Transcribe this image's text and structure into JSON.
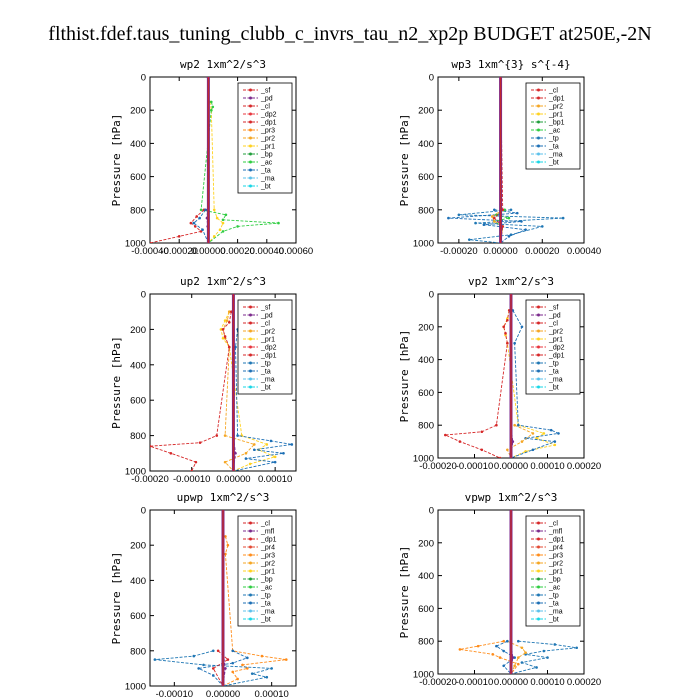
{
  "figure_title": "flthist.fdef.taus_tuning_clubb_c_invrs_tau_n2_xp2p  BUDGET at250E,-2N",
  "colors": {
    "sf": "#d62728",
    "pd": "#7b2a8c",
    "cl": "#d62728",
    "dp1": "#d62728",
    "dp2": "#e8343c",
    "pr1": "#ffd21f",
    "pr2": "#f5a623",
    "pr3": "#ff8c1a",
    "pr4": "#e34a33",
    "bp": "#1f9e3a",
    "bp1": "#1f9e3a",
    "ac": "#2ecc40",
    "tp": "#1f77b4",
    "ta": "#1c6fb5",
    "ma": "#5bc0eb",
    "bt": "#17d6e6",
    "mfl": "#7b2a8c"
  },
  "chart_data": [
    {
      "type": "line",
      "title": "wp2  1xm^2/s^3",
      "ylabel": "Pressure [hPa]",
      "xlim": [
        -0.0004,
        0.0006
      ],
      "ylim": [
        1000,
        0
      ],
      "xticks": [
        -0.0004,
        -0.0002,
        0.0,
        0.0002,
        0.0004,
        0.0006
      ],
      "xticklabels": [
        "-0.00040",
        "-0.00020",
        "0.00000",
        "0.00020",
        "0.00040",
        "0.00060"
      ],
      "yticks": [
        0,
        200,
        400,
        600,
        800,
        1000
      ],
      "yticklabels": [
        "0",
        "200",
        "400",
        "600",
        "800",
        "1000"
      ],
      "legend": [
        "_sf",
        "_pd",
        "_cl",
        "_dp2",
        "_dp1",
        "_pr3",
        "_pr2",
        "_pr1",
        "_bp",
        "_ac",
        "_ta",
        "_ma",
        "_bt"
      ],
      "series": [
        {
          "name": "_pr1",
          "key": "pr1",
          "y": [
            150,
            200,
            800,
            850,
            880,
            920,
            960,
            1000
          ],
          "x": [
            1e-05,
            2e-05,
            4e-05,
            6e-05,
            0.0001,
            8e-05,
            4e-05,
            0.0
          ]
        },
        {
          "name": "_ac",
          "key": "ac",
          "y": [
            150,
            180,
            200,
            800,
            830,
            860,
            880,
            900,
            930,
            1000
          ],
          "x": [
            2e-05,
            3e-05,
            2e-05,
            -5e-05,
            0.00012,
            0.0001,
            0.00048,
            0.0002,
            0.0001,
            0.0
          ]
        },
        {
          "name": "_dp1",
          "key": "dp1",
          "y": [
            800,
            840,
            880,
            900,
            930,
            960,
            1000
          ],
          "x": [
            -3e-05,
            -8e-05,
            -0.00012,
            -9e-05,
            -5e-05,
            -0.0002,
            -0.0004
          ]
        },
        {
          "name": "_ta",
          "key": "ta",
          "y": [
            800,
            850,
            880,
            920,
            1000
          ],
          "x": [
            -2e-05,
            -6e-05,
            -0.0001,
            -4e-05,
            0.0
          ]
        },
        {
          "name": "_pd",
          "key": "pd",
          "y": [
            0,
            800,
            850,
            900,
            1000
          ],
          "x": [
            -5e-06,
            -5e-06,
            -1e-05,
            -5e-06,
            0.0
          ]
        }
      ]
    },
    {
      "type": "line",
      "title": "wp3  1xm^{3} s^{-4}",
      "ylabel": "Pressure [hPa]",
      "xlim": [
        -0.0003,
        0.0004
      ],
      "ylim": [
        1000,
        0
      ],
      "xticks": [
        -0.0002,
        0.0,
        0.0002,
        0.0004
      ],
      "xticklabels": [
        "-0.00020",
        "0.00000",
        "0.00020",
        "0.00040"
      ],
      "yticks": [
        0,
        200,
        400,
        600,
        800,
        1000
      ],
      "yticklabels": [
        "0",
        "200",
        "400",
        "600",
        "800",
        "1000"
      ],
      "legend": [
        "_cl",
        "_dp1",
        "_pr2",
        "_pr1",
        "_bp1",
        "_ac",
        "_tp",
        "_ta",
        "_ma",
        "_bt"
      ],
      "series": [
        {
          "name": "_tp",
          "key": "tp",
          "y": [
            800,
            830,
            850,
            880,
            900,
            950,
            980,
            1000
          ],
          "x": [
            5e-05,
            -0.0002,
            0.0003,
            -0.00012,
            0.0002,
            5e-05,
            -0.00015,
            0.0
          ]
        },
        {
          "name": "_ta",
          "key": "ta",
          "y": [
            800,
            820,
            850,
            870,
            890,
            920,
            960,
            1000
          ],
          "x": [
            -3e-05,
            8e-05,
            -0.00025,
            0.0001,
            -8e-05,
            0.00012,
            4e-05,
            0.0
          ]
        },
        {
          "name": "_ac",
          "key": "ac",
          "y": [
            800,
            830,
            850,
            870,
            900,
            1000
          ],
          "x": [
            2e-05,
            -2e-05,
            4e-05,
            -3e-05,
            1e-05,
            0.0
          ]
        },
        {
          "name": "_pr2",
          "key": "pr2",
          "y": [
            800,
            840,
            870,
            900,
            1000
          ],
          "x": [
            1e-05,
            -4e-05,
            -3e-05,
            1e-05,
            0.0
          ]
        },
        {
          "name": "_dp1",
          "key": "dp1",
          "y": [
            0,
            800,
            850,
            900,
            1000
          ],
          "x": [
            0.0,
            1e-05,
            -3e-05,
            1e-05,
            0.0
          ]
        }
      ]
    },
    {
      "type": "line",
      "title": "up2  1xm^2/s^3",
      "ylabel": "Pressure [hPa]",
      "xlim": [
        -0.0002,
        0.00015
      ],
      "ylim": [
        1000,
        0
      ],
      "xticks": [
        -0.0002,
        -0.0001,
        0.0,
        0.0001
      ],
      "xticklabels": [
        "-0.00020",
        "-0.00010",
        "0.00000",
        "0.00010"
      ],
      "yticks": [
        0,
        200,
        400,
        600,
        800,
        1000
      ],
      "yticklabels": [
        "0",
        "200",
        "400",
        "600",
        "800",
        "1000"
      ],
      "legend": [
        "_sf",
        "_pd",
        "_cl",
        "_pr2",
        "_pr1",
        "_dp2",
        "_dp1",
        "_tp",
        "_ta",
        "_ma",
        "_bt"
      ],
      "series": [
        {
          "name": "_pr1",
          "key": "pr1",
          "y": [
            100,
            150,
            200,
            250,
            300,
            800,
            850,
            880,
            920,
            960,
            1000
          ],
          "x": [
            -1e-05,
            -2e-05,
            -3e-05,
            -2.5e-05,
            -1e-05,
            2e-05,
            8e-05,
            6e-05,
            0.0001,
            4e-05,
            0.0
          ]
        },
        {
          "name": "_pr2",
          "key": "pr2",
          "y": [
            100,
            150,
            200,
            250,
            300,
            800,
            850,
            900,
            950,
            1000
          ],
          "x": [
            -1e-05,
            -1.5e-05,
            -2.5e-05,
            -2e-05,
            -1e-05,
            -2e-05,
            5e-05,
            3e-05,
            -2e-05,
            0.0
          ]
        },
        {
          "name": "_dp1",
          "key": "dp1",
          "y": [
            100,
            160,
            200,
            240,
            300,
            800,
            840,
            860,
            900,
            950,
            1000
          ],
          "x": [
            -5e-06,
            -1e-05,
            -2.5e-05,
            -2e-05,
            -1e-05,
            -4e-05,
            -8e-05,
            -0.0002,
            -0.00015,
            -9e-05,
            -0.0001
          ]
        },
        {
          "name": "_ta",
          "key": "ta",
          "y": [
            200,
            300,
            800,
            830,
            850,
            880,
            900,
            930,
            950,
            1000
          ],
          "x": [
            1e-05,
            5e-06,
            1e-05,
            9e-05,
            0.00014,
            5e-05,
            0.00012,
            3e-05,
            0.0001,
            0.0
          ]
        },
        {
          "name": "_pd",
          "key": "pd",
          "y": [
            0,
            800,
            900,
            1000
          ],
          "x": [
            0.0,
            0.0,
            5e-06,
            0.0
          ]
        }
      ]
    },
    {
      "type": "line",
      "title": "vp2  1xm^2/s^3",
      "ylabel": "Pressure [hPa]",
      "xlim": [
        -0.0002,
        0.0002
      ],
      "ylim": [
        1000,
        0
      ],
      "xticks": [
        -0.0002,
        -0.0001,
        0.0,
        0.0001,
        0.0002
      ],
      "xticklabels": [
        "-0.00020",
        "-0.00010",
        "0.00000",
        "0.00010",
        "0.00020"
      ],
      "yticks": [
        0,
        200,
        400,
        600,
        800,
        1000
      ],
      "yticklabels": [
        "0",
        "200",
        "400",
        "600",
        "800",
        "1000"
      ],
      "legend": [
        "_sf",
        "_pd",
        "_cl",
        "_pr2",
        "_pr1",
        "_dp2",
        "_dp1",
        "_tp",
        "_ta",
        "_ma",
        "_bt"
      ],
      "series": [
        {
          "name": "_pr1",
          "key": "pr1",
          "y": [
            100,
            150,
            200,
            250,
            300,
            800,
            850,
            880,
            920,
            960,
            1000
          ],
          "x": [
            -5e-06,
            -1e-05,
            -2e-05,
            -1.5e-05,
            -1e-05,
            2e-05,
            9e-05,
            7e-05,
            0.00012,
            4e-05,
            0.0
          ]
        },
        {
          "name": "_dp1",
          "key": "dp1",
          "y": [
            100,
            160,
            200,
            240,
            300,
            800,
            840,
            860,
            900,
            950,
            1000
          ],
          "x": [
            -5e-06,
            -1e-05,
            -2e-05,
            -1.5e-05,
            -1e-05,
            -4e-05,
            -8e-05,
            -0.00018,
            -0.00014,
            -8e-05,
            -3e-05
          ]
        },
        {
          "name": "_ta",
          "key": "ta",
          "y": [
            100,
            200,
            300,
            800,
            830,
            850,
            880,
            900,
            950,
            1000
          ],
          "x": [
            5e-06,
            3e-05,
            1e-05,
            2e-05,
            0.00011,
            0.00013,
            4e-05,
            0.00012,
            6e-05,
            0.0
          ]
        },
        {
          "name": "_pr2",
          "key": "pr2",
          "y": [
            800,
            850,
            900,
            950,
            1000
          ],
          "x": [
            1e-05,
            6e-05,
            3e-05,
            -1e-05,
            0.0
          ]
        },
        {
          "name": "_pd",
          "key": "pd",
          "y": [
            0,
            800,
            900,
            1000
          ],
          "x": [
            0.0,
            0.0,
            5e-06,
            0.0
          ]
        }
      ]
    },
    {
      "type": "line",
      "title": "upwp  1xm^2/s^3",
      "ylabel": "Pressure [hPa]",
      "xlim": [
        -0.00015,
        0.00015
      ],
      "ylim": [
        1000,
        0
      ],
      "xticks": [
        -0.0001,
        0.0,
        0.0001
      ],
      "xticklabels": [
        "-0.00010",
        "0.00000",
        "0.00010"
      ],
      "yticks": [
        0,
        200,
        400,
        600,
        800,
        1000
      ],
      "yticklabels": [
        "0",
        "200",
        "400",
        "600",
        "800",
        "1000"
      ],
      "legend": [
        "_cl",
        "_mfl",
        "_dp1",
        "_pr4",
        "_pr3",
        "_pr2",
        "_pr1",
        "_bp",
        "_ac",
        "_tp",
        "_ta",
        "_ma",
        "_bt"
      ],
      "series": [
        {
          "name": "_pr3",
          "key": "pr3",
          "y": [
            150,
            200,
            250,
            800,
            830,
            850,
            880,
            900,
            920,
            960,
            1000
          ],
          "x": [
            5e-06,
            1e-05,
            5e-06,
            2e-05,
            8e-05,
            0.00013,
            4e-05,
            5e-05,
            2e-05,
            3e-05,
            0.0
          ]
        },
        {
          "name": "_tp",
          "key": "tp",
          "y": [
            800,
            830,
            850,
            880,
            900,
            930,
            950,
            1000
          ],
          "x": [
            -2e-05,
            -6e-05,
            -0.00014,
            -4e-05,
            0.0001,
            6e-05,
            9e-05,
            0.0
          ]
        },
        {
          "name": "_ta",
          "key": "ta",
          "y": [
            800,
            840,
            870,
            900,
            940,
            1000
          ],
          "x": [
            2e-05,
            5e-05,
            2e-05,
            -5e-05,
            -2e-05,
            0.0
          ]
        },
        {
          "name": "_dp1",
          "key": "dp1",
          "y": [
            800,
            850,
            900,
            1000
          ],
          "x": [
            -1e-05,
            1e-05,
            -2e-05,
            0.0
          ]
        },
        {
          "name": "_mfl",
          "key": "mfl",
          "y": [
            0,
            800,
            900,
            1000
          ],
          "x": [
            0.0,
            0.0,
            5e-06,
            0.0
          ]
        }
      ]
    },
    {
      "type": "line",
      "title": "vpwp  1xm^2/s^3",
      "ylabel": "Pressure [hPa]",
      "xlim": [
        -0.0002,
        0.0002
      ],
      "ylim": [
        1000,
        0
      ],
      "xticks": [
        -0.0002,
        -0.0001,
        0.0,
        0.0001,
        0.0002
      ],
      "xticklabels": [
        "-0.00020",
        "-0.00010",
        "0.00000",
        "0.00010",
        "0.00020"
      ],
      "yticks": [
        0,
        200,
        400,
        600,
        800,
        1000
      ],
      "yticklabels": [
        "0",
        "200",
        "400",
        "600",
        "800",
        "1000"
      ],
      "legend": [
        "_cl",
        "_mfl",
        "_dp1",
        "_pr4",
        "_pr3",
        "_pr2",
        "_pr1",
        "_bp",
        "_ac",
        "_tp",
        "_ta",
        "_ma",
        "_bt"
      ],
      "series": [
        {
          "name": "_tp",
          "key": "tp",
          "y": [
            800,
            820,
            840,
            860,
            880,
            900,
            930,
            960,
            1000
          ],
          "x": [
            2e-05,
            0.00012,
            0.00018,
            9e-05,
            4e-05,
            0.0001,
            3e-05,
            7e-05,
            0.0
          ]
        },
        {
          "name": "_pr3",
          "key": "pr3",
          "y": [
            800,
            830,
            850,
            880,
            900,
            940,
            1000
          ],
          "x": [
            -2e-05,
            -9e-05,
            -0.00014,
            -5e-05,
            -3e-05,
            2e-05,
            0.0
          ]
        },
        {
          "name": "_pr2",
          "key": "pr2",
          "y": [
            800,
            840,
            870,
            900,
            950,
            1000
          ],
          "x": [
            -1e-05,
            3e-05,
            4e-05,
            2e-05,
            1e-05,
            0.0
          ]
        },
        {
          "name": "_ta",
          "key": "ta",
          "y": [
            800,
            830,
            860,
            900,
            950,
            1000
          ],
          "x": [
            -1e-05,
            -4e-05,
            -2e-05,
            1e-05,
            -2e-05,
            0.0
          ]
        },
        {
          "name": "_mfl",
          "key": "mfl",
          "y": [
            0,
            800,
            900,
            1000
          ],
          "x": [
            0.0,
            0.0,
            5e-06,
            0.0
          ]
        }
      ]
    }
  ]
}
